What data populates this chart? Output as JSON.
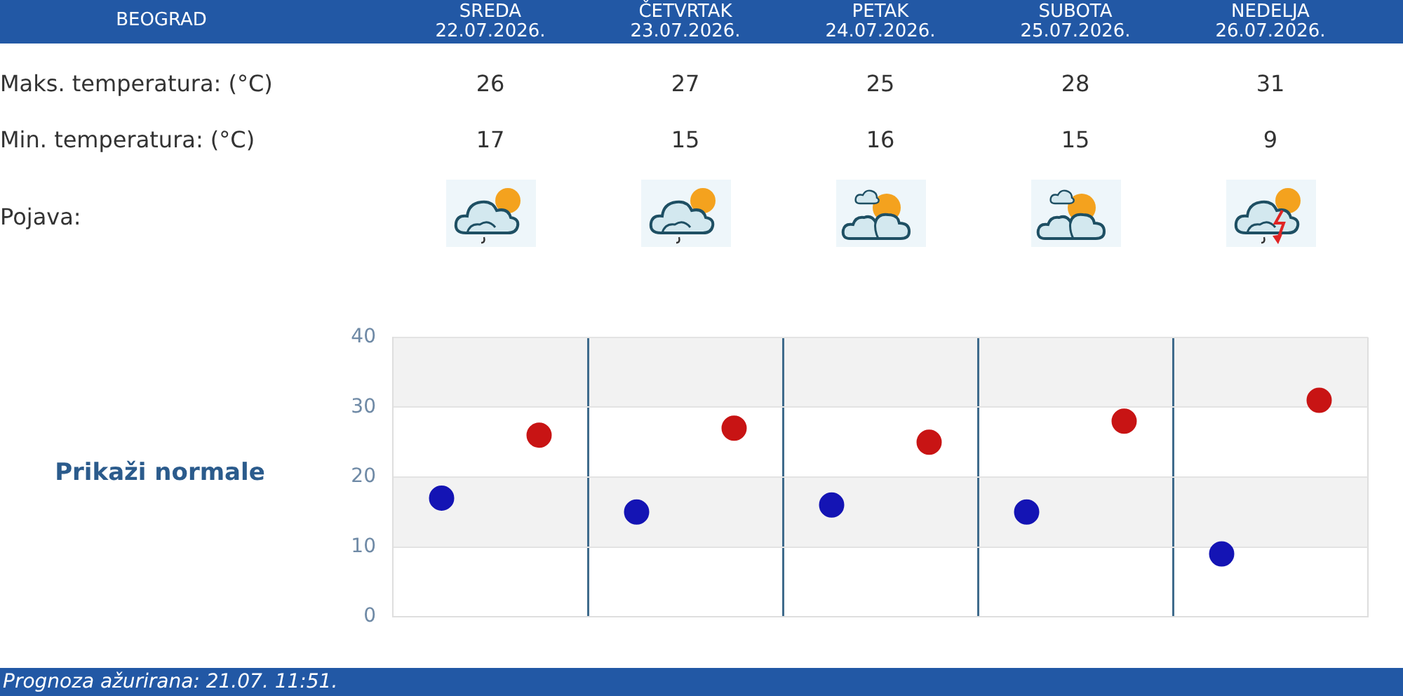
{
  "chart_data": [
    {
      "type": "other",
      "title": "BEOGRAD",
      "categories": [
        "SREDA 22.07.2026.",
        "ČETVRTAK 23.07.2026.",
        "PETAK 24.07.2026.",
        "SUBOTA 25.07.2026.",
        "NEDELJA 26.07.2026."
      ],
      "series": [
        {
          "name": "Maks. temperatura: (°C)",
          "values": [
            26,
            27,
            25,
            28,
            31
          ]
        },
        {
          "name": "Min. temperatura: (°C)",
          "values": [
            17,
            15,
            16,
            15,
            9
          ]
        }
      ],
      "data_labels": true,
      "annotations": [
        "Pojava:"
      ]
    },
    {
      "type": "scatter",
      "categories": [
        null,
        null,
        null,
        null,
        null
      ],
      "series": [
        {
          "color": "#c81414",
          "values": [
            26,
            27,
            25,
            28,
            31
          ]
        },
        {
          "color": "#1414b4",
          "values": [
            17,
            15,
            16,
            15,
            9
          ]
        }
      ],
      "ylim": [
        0,
        40
      ],
      "yticks": [
        0,
        10,
        20,
        30,
        40
      ],
      "grid": true,
      "marker": "circle",
      "tick_labels": "y",
      "bands": [
        {
          "axis": "y",
          "from": 10,
          "to": 20,
          "color": "#f2f2f2"
        },
        {
          "axis": "y",
          "from": 30,
          "to": 40,
          "color": "#f2f2f2"
        }
      ],
      "annotations": [
        "Prikaži normale",
        "Prognoza ažurirana: 21.07. 11:51."
      ]
    }
  ]
}
